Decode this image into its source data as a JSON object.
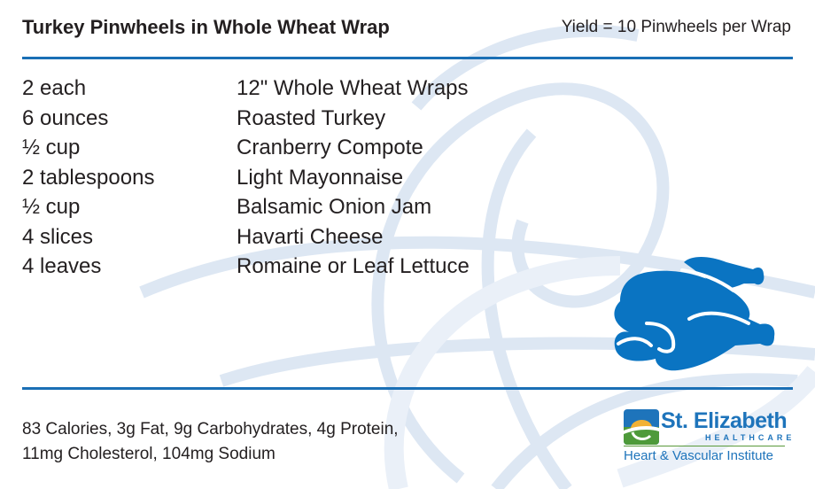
{
  "header": {
    "title": "Turkey Pinwheels in Whole Wheat Wrap",
    "yield": "Yield = 10 Pinwheels per Wrap"
  },
  "ingredients": [
    {
      "qty": "2 each",
      "item": "12\" Whole Wheat Wraps"
    },
    {
      "qty": "6 ounces",
      "item": "Roasted Turkey"
    },
    {
      "qty": "½ cup",
      "item": "Cranberry Compote"
    },
    {
      "qty": "2 tablespoons",
      "item": "Light Mayonnaise"
    },
    {
      "qty": "½ cup",
      "item": "Balsamic Onion Jam"
    },
    {
      "qty": "4 slices",
      "item": "Havarti Cheese"
    },
    {
      "qty": "4 leaves",
      "item": "Romaine or Leaf Lettuce"
    }
  ],
  "nutrition": {
    "line1": "83 Calories, 3g Fat, 9g Carbohydrates, 4g Protein,",
    "line2": "11mg Cholesterol, 104mg Sodium"
  },
  "logo": {
    "name": "St. Elizabeth",
    "sub": "HEALTHCARE",
    "institute": "Heart & Vascular Institute"
  },
  "icons": {
    "illustration": "turkey-icon"
  },
  "colors": {
    "accent": "#1a6fb5",
    "turkey": "#0a74c2",
    "swirl": "#dbe6f3"
  }
}
